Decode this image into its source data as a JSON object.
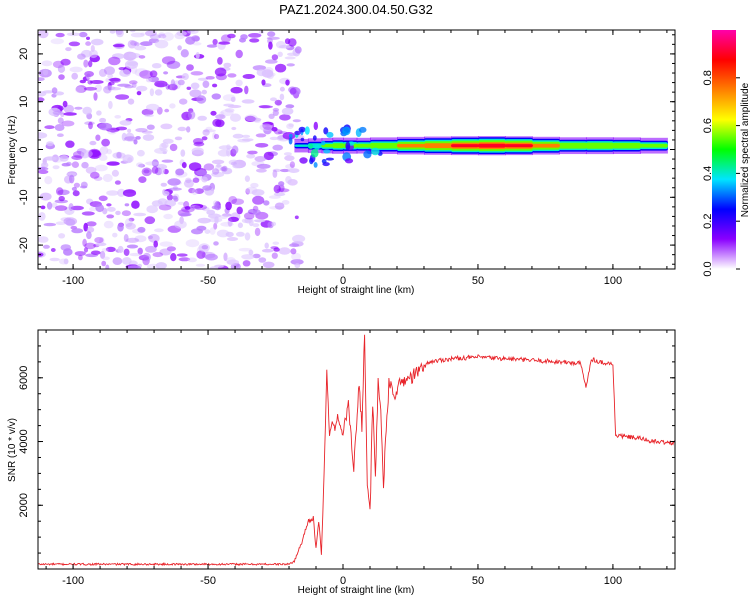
{
  "figure": {
    "title": "PAZ1.2024.300.04.50.G32"
  },
  "chart_data": [
    {
      "type": "heatmap",
      "xlabel": "Height of straight line (km)",
      "ylabel": "Frequency (Hz)",
      "xlim": [
        -113,
        123
      ],
      "ylim": [
        -25,
        25
      ],
      "x_ticks": [
        -100,
        -50,
        0,
        50,
        100
      ],
      "y_ticks": [
        -20,
        -10,
        0,
        10,
        20
      ],
      "colorbar": {
        "label": "Normalized spectral amplitude",
        "range": [
          0,
          1
        ],
        "ticks": [
          0.0,
          0.2,
          0.4,
          0.6,
          0.8
        ],
        "colors": [
          "#ffffff",
          "#8a00ff",
          "#0000ff",
          "#00e5ff",
          "#00ff00",
          "#ffff00",
          "#ff7f00",
          "#ff0000",
          "#ff00aa"
        ]
      },
      "noise_region_x": [
        -113,
        -20
      ],
      "signal_band": {
        "x_start": -20,
        "x_end": 123,
        "center_freq": 0.8,
        "points": [
          {
            "x": -18,
            "amp": 0.25
          },
          {
            "x": -13,
            "amp": 0.45
          },
          {
            "x": -8,
            "amp": 0.5
          },
          {
            "x": -4,
            "amp": 0.6
          },
          {
            "x": 0,
            "amp": 0.65
          },
          {
            "x": 5,
            "amp": 0.55
          },
          {
            "x": 10,
            "amp": 0.6
          },
          {
            "x": 20,
            "amp": 0.72
          },
          {
            "x": 30,
            "amp": 0.8
          },
          {
            "x": 40,
            "amp": 0.85
          },
          {
            "x": 50,
            "amp": 0.92
          },
          {
            "x": 60,
            "amp": 0.92
          },
          {
            "x": 70,
            "amp": 0.85
          },
          {
            "x": 80,
            "amp": 0.7
          },
          {
            "x": 90,
            "amp": 0.65
          },
          {
            "x": 100,
            "amp": 0.72
          },
          {
            "x": 110,
            "amp": 0.6
          },
          {
            "x": 120,
            "amp": 0.55
          }
        ]
      }
    },
    {
      "type": "line",
      "xlabel": "Height of straight line (km)",
      "ylabel": "SNR (10 * v/v)",
      "xlim": [
        -113,
        123
      ],
      "ylim": [
        0,
        7500
      ],
      "x_ticks": [
        -100,
        -50,
        0,
        50,
        100
      ],
      "y_ticks": [
        2000,
        4000,
        6000
      ],
      "line_color": "#e8242a",
      "series": [
        {
          "x": [
            -113,
            -90,
            -70,
            -50,
            -30,
            -20,
            -18,
            -15,
            -13,
            -11,
            -10,
            -9,
            -8,
            -7,
            -6,
            -5,
            -4,
            -3,
            -2,
            0,
            2,
            4,
            6,
            7,
            8,
            9,
            10,
            11,
            12,
            13,
            14,
            15,
            17,
            19,
            22,
            25,
            28,
            32,
            40,
            50,
            60,
            70,
            80,
            88,
            90,
            92,
            95,
            99,
            100,
            101,
            105,
            110,
            115,
            123
          ],
          "y": [
            150,
            150,
            150,
            150,
            150,
            150,
            250,
            900,
            1500,
            1600,
            600,
            1500,
            500,
            3000,
            6200,
            4200,
            4600,
            4400,
            4800,
            4200,
            5200,
            3200,
            5800,
            4500,
            7400,
            2700,
            1700,
            5200,
            2900,
            5800,
            5000,
            2700,
            5800,
            5500,
            5900,
            6000,
            6200,
            6500,
            6600,
            6650,
            6600,
            6550,
            6500,
            6450,
            5700,
            6600,
            6500,
            6450,
            6400,
            4200,
            4150,
            4100,
            4000,
            3950
          ]
        }
      ]
    }
  ]
}
